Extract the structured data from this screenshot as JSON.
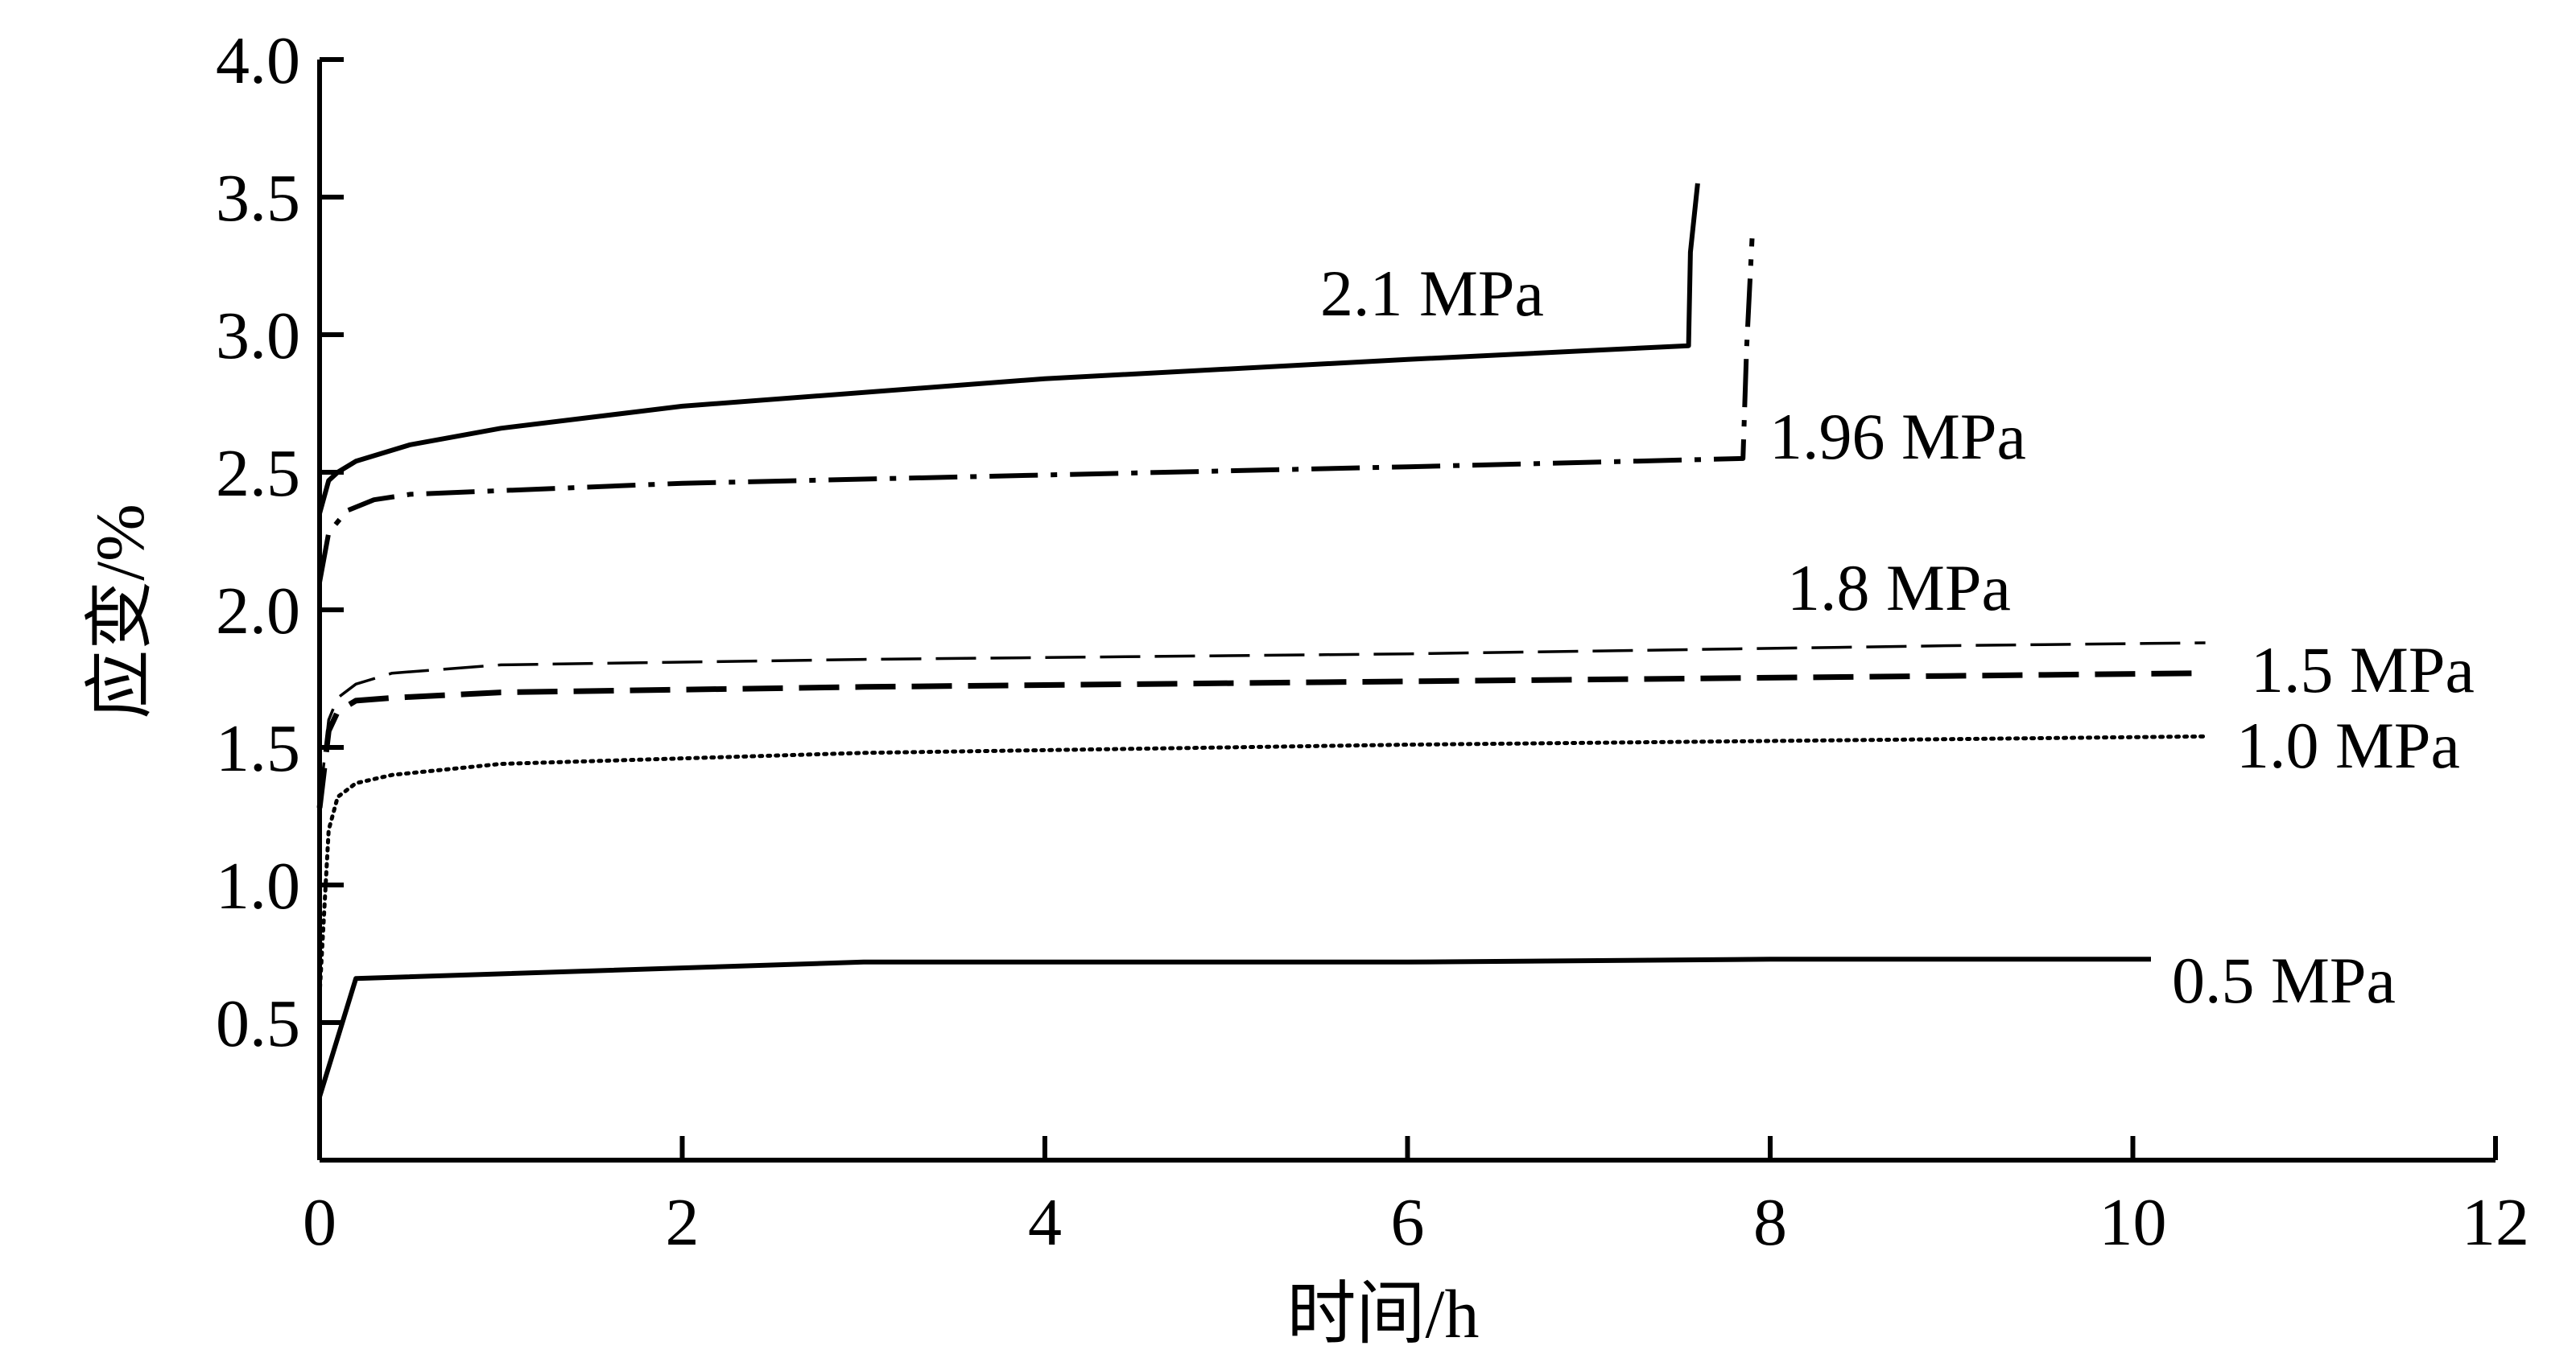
{
  "chart_data": {
    "type": "line",
    "title": "",
    "xlabel": "时间/h",
    "ylabel": "应变/%",
    "xlim": [
      0,
      12
    ],
    "ylim": [
      0,
      4.0
    ],
    "xticks": [
      "0",
      "2",
      "4",
      "6",
      "8",
      "10",
      "12"
    ],
    "yticks": [
      "0.5",
      "1.0",
      "1.5",
      "2.0",
      "2.5",
      "3.0",
      "3.5",
      "4.0"
    ],
    "grid": false,
    "legend": "inline labels",
    "series": [
      {
        "name": "2.1 MPa",
        "style": "dashdot-solid",
        "x": [
          0,
          0.05,
          0.1,
          0.2,
          0.5,
          1,
          2,
          4,
          6,
          7.55,
          7.56,
          7.6
        ],
        "y": [
          2.35,
          2.47,
          2.5,
          2.54,
          2.6,
          2.66,
          2.74,
          2.84,
          2.91,
          2.96,
          3.3,
          3.55
        ]
      },
      {
        "name": "1.96 MPa",
        "style": "dashdot",
        "x": [
          0,
          0.05,
          0.15,
          0.3,
          0.5,
          2,
          4,
          6,
          7.85,
          7.87,
          7.9
        ],
        "y": [
          2.1,
          2.28,
          2.36,
          2.4,
          2.42,
          2.46,
          2.49,
          2.52,
          2.55,
          2.95,
          3.35
        ]
      },
      {
        "name": "1.8 MPa",
        "style": "thin-dash",
        "x": [
          0,
          0.05,
          0.1,
          0.2,
          0.4,
          1,
          3,
          6,
          9,
          10.4
        ],
        "y": [
          1.3,
          1.6,
          1.68,
          1.73,
          1.77,
          1.8,
          1.82,
          1.84,
          1.87,
          1.88
        ]
      },
      {
        "name": "1.5 MPa",
        "style": "thick-dash",
        "x": [
          0,
          0.05,
          0.1,
          0.2,
          0.4,
          1,
          3,
          6,
          9,
          10.4
        ],
        "y": [
          1.28,
          1.56,
          1.63,
          1.67,
          1.68,
          1.7,
          1.72,
          1.74,
          1.76,
          1.77
        ]
      },
      {
        "name": "1.0 MPa",
        "style": "dotted",
        "x": [
          0,
          0.05,
          0.1,
          0.2,
          0.4,
          1,
          3,
          6,
          9,
          10.4
        ],
        "y": [
          0.6,
          1.2,
          1.32,
          1.37,
          1.4,
          1.44,
          1.48,
          1.51,
          1.53,
          1.54
        ]
      },
      {
        "name": "0.5 MPa",
        "style": "solid",
        "x": [
          0,
          0.2,
          3,
          6,
          8,
          10.1
        ],
        "y": [
          0.23,
          0.66,
          0.72,
          0.72,
          0.73,
          0.73
        ]
      }
    ]
  }
}
